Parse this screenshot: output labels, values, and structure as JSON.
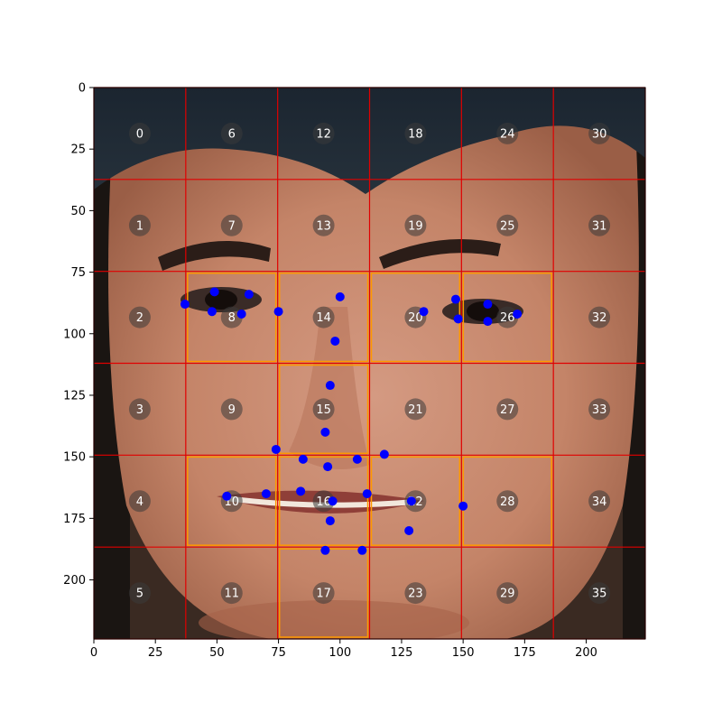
{
  "chart_data": {
    "type": "scatter",
    "title": "",
    "xlabel": "",
    "ylabel": "",
    "xlim": [
      0,
      224
    ],
    "ylim": [
      224,
      0
    ],
    "y_axis_inverted": true,
    "grid": false,
    "background": "face photograph",
    "x_ticks": [
      0,
      25,
      50,
      75,
      100,
      125,
      150,
      175,
      200
    ],
    "y_ticks": [
      0,
      25,
      50,
      75,
      100,
      125,
      150,
      175,
      200
    ],
    "grid_cells": {
      "boundaries": [
        0,
        37.33,
        74.67,
        112,
        149.33,
        186.67,
        224
      ],
      "line_color": "#e00000",
      "label_numbering": "column-major, 6 rows per column",
      "labels": [
        "0",
        "1",
        "2",
        "3",
        "4",
        "5",
        "6",
        "7",
        "8",
        "9",
        "10",
        "11",
        "12",
        "13",
        "14",
        "15",
        "16",
        "17",
        "18",
        "19",
        "20",
        "21",
        "22",
        "23",
        "24",
        "25",
        "26",
        "27",
        "28",
        "29",
        "30",
        "31",
        "32",
        "33",
        "34",
        "35"
      ],
      "highlighted_cells": [
        8,
        14,
        20,
        26,
        15,
        10,
        16,
        22,
        28,
        17
      ],
      "highlight_color": "#ff9900"
    },
    "series": [
      {
        "marker_color": "#0000ff",
        "x": [
          37,
          49,
          48,
          60,
          63,
          75,
          100,
          98,
          96,
          94,
          74,
          85,
          95,
          107,
          118,
          54,
          70,
          84,
          97,
          111,
          129,
          150,
          96,
          128,
          94,
          109,
          134,
          147,
          148,
          160,
          160,
          172
        ],
        "y": [
          88,
          83,
          91,
          92,
          84,
          91,
          85,
          103,
          121,
          140,
          147,
          151,
          154,
          151,
          149,
          166,
          165,
          164,
          168,
          165,
          168,
          170,
          176,
          180,
          188,
          188,
          91,
          86,
          94,
          88,
          95,
          92
        ]
      }
    ]
  }
}
